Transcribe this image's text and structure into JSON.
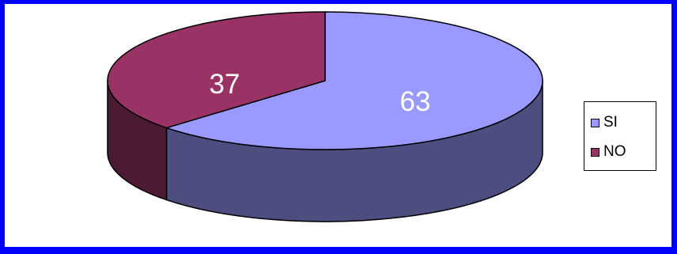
{
  "chart_data": {
    "type": "pie",
    "categories": [
      "SI",
      "NO"
    ],
    "values": [
      63,
      37
    ],
    "data_labels": [
      "63",
      "37"
    ],
    "title": "",
    "legend": {
      "placement": "right",
      "items": [
        {
          "label": "SI",
          "color": "#9999ff"
        },
        {
          "label": "NO",
          "color": "#993366"
        }
      ]
    },
    "style": "3d",
    "colors": {
      "SI_top": "#9999ff",
      "SI_side": "#4d4d80",
      "NO_top": "#993366",
      "NO_side": "#4d1a33"
    }
  },
  "frame": {
    "border_color": "#0000ff",
    "background": "#ffffff"
  }
}
